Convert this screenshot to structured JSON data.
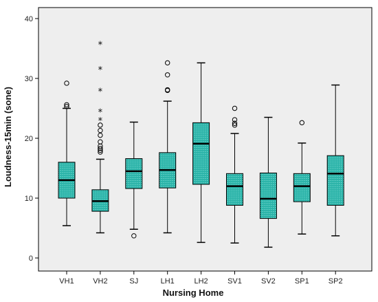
{
  "chart_data": {
    "type": "boxplot",
    "xlabel": "Nursing Home",
    "ylabel": "Loudness-15min (sone)",
    "ylim": [
      0,
      40
    ],
    "yticks": [
      0,
      10,
      20,
      30,
      40
    ],
    "grid": false,
    "colors": {
      "box_fill": "#2ab3a8",
      "box_dots": "#7fded6",
      "plot_bg": "#eeeeee",
      "stroke": "#000000"
    },
    "categories": [
      "VH1",
      "VH2",
      "SJ",
      "LH1",
      "LH2",
      "SV1",
      "SV2",
      "SP1",
      "SP2"
    ],
    "boxes": [
      {
        "category": "VH1",
        "min": 5.4,
        "q1": 10.0,
        "median": 13.0,
        "q3": 16.0,
        "max": 25.0,
        "outliers": [
          25.3,
          25.6,
          29.2
        ],
        "extremes": []
      },
      {
        "category": "VH2",
        "min": 4.2,
        "q1": 7.8,
        "median": 9.5,
        "q3": 11.4,
        "max": 16.5,
        "outliers": [
          17.7,
          18.0,
          18.3,
          18.7,
          19.4,
          20.5,
          21.3,
          22.2
        ],
        "extremes": [
          23.0,
          24.4,
          27.9,
          31.5,
          35.7
        ]
      },
      {
        "category": "SJ",
        "min": 4.8,
        "q1": 11.6,
        "median": 14.5,
        "q3": 16.6,
        "max": 22.7,
        "outliers": [
          3.7
        ],
        "extremes": []
      },
      {
        "category": "LH1",
        "min": 4.2,
        "q1": 11.7,
        "median": 14.7,
        "q3": 17.6,
        "max": 26.2,
        "outliers": [
          28.0,
          28.1,
          30.6,
          32.6
        ],
        "extremes": []
      },
      {
        "category": "LH2",
        "min": 2.6,
        "q1": 12.3,
        "median": 19.1,
        "q3": 22.6,
        "max": 32.6,
        "outliers": [],
        "extremes": []
      },
      {
        "category": "SV1",
        "min": 2.5,
        "q1": 8.8,
        "median": 12.0,
        "q3": 14.1,
        "max": 20.8,
        "outliers": [
          22.2,
          22.5,
          23.1,
          25.0
        ],
        "extremes": []
      },
      {
        "category": "SV2",
        "min": 1.8,
        "q1": 6.6,
        "median": 9.9,
        "q3": 14.2,
        "max": 23.5,
        "outliers": [],
        "extremes": []
      },
      {
        "category": "SP1",
        "min": 4.0,
        "q1": 9.4,
        "median": 12.0,
        "q3": 14.1,
        "max": 19.2,
        "outliers": [
          22.6
        ],
        "extremes": []
      },
      {
        "category": "SP2",
        "min": 3.7,
        "q1": 8.8,
        "median": 14.1,
        "q3": 17.1,
        "max": 28.9,
        "outliers": [],
        "extremes": []
      }
    ]
  }
}
